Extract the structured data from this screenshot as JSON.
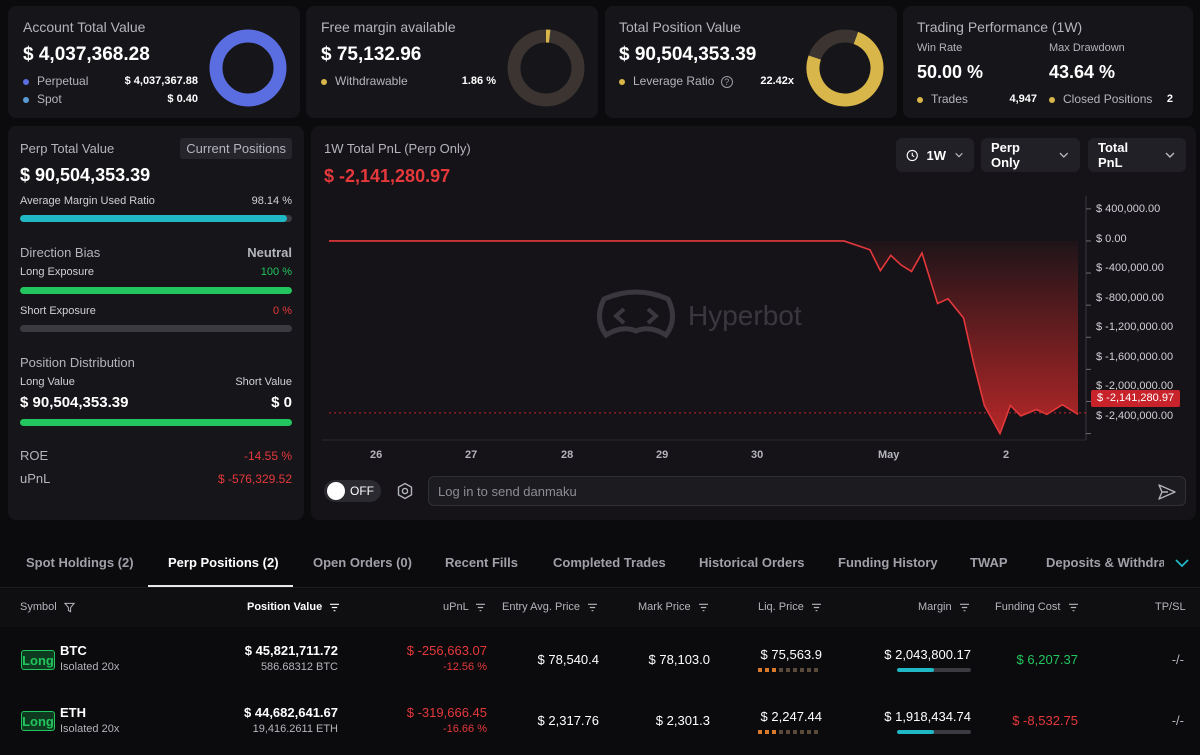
{
  "account": {
    "title": "Account Total Value",
    "value": "$ 4,037,368.28",
    "rows": [
      {
        "label": "Perpetual",
        "value": "$ 4,037,367.88"
      },
      {
        "label": "Spot",
        "value": "$ 0.40"
      }
    ],
    "donut_color": "#5b6ee1"
  },
  "margin": {
    "title": "Free margin available",
    "value": "$ 75,132.96",
    "row_label": "Withdrawable",
    "row_value": "1.86 %",
    "pct": 0.0186,
    "donut_color": "#d9b64a"
  },
  "position": {
    "title": "Total Position Value",
    "value": "$ 90,504,353.39",
    "row_label": "Leverage Ratio",
    "row_value": "22.42x",
    "donut_color": "#d9b64a"
  },
  "performance": {
    "title": "Trading Performance (1W)",
    "win_rate_label": "Win Rate",
    "win_rate": "50.00 %",
    "drawdown_label": "Max Drawdown",
    "drawdown": "43.64 %",
    "trades_label": "Trades",
    "trades": "4,947",
    "closed_label": "Closed Positions",
    "closed": "2"
  },
  "perp_panel": {
    "title": "Perp Total Value",
    "current_positions": "Current Positions",
    "value": "$ 90,504,353.39",
    "avg_margin_label": "Average Margin Used Ratio",
    "avg_margin": "98.14 %",
    "avg_margin_pct": 0.9814,
    "direction_label": "Direction Bias",
    "direction_value": "Neutral",
    "long_exposure_label": "Long Exposure",
    "long_exposure": "100 %",
    "long_exposure_pct": 1.0,
    "short_exposure_label": "Short Exposure",
    "short_exposure": "0 %",
    "short_exposure_pct": 0.0,
    "distribution_label": "Position Distribution",
    "long_value_label": "Long Value",
    "short_value_label": "Short Value",
    "long_value": "$ 90,504,353.39",
    "short_value": "$ 0",
    "roe_label": "ROE",
    "roe": "-14.55 %",
    "upnl_label": "uPnL",
    "upnl": "$ -576,329.52"
  },
  "pnl_chart": {
    "title": "1W Total PnL (Perp Only)",
    "value": "$ -2,141,280.97",
    "period": "1W",
    "scope": "Perp Only",
    "metric": "Total PnL",
    "watermark": "Hyperbot",
    "current_label": "$ -2,141,280.97",
    "danmaku_toggle": "OFF",
    "danmaku_placeholder": "Log in to send danmaku"
  },
  "chart_data": {
    "type": "area",
    "title": "1W Total PnL (Perp Only)",
    "y_ticks": [
      "$ 400,000.00",
      "$ 0.00",
      "$ -400,000.00",
      "$ -800,000.00",
      "$ -1,200,000.00",
      "$ -1,600,000.00",
      "$ -2,000,000.00",
      "$ -2,400,000.00"
    ],
    "y_tick_values": [
      400000,
      0,
      -400000,
      -800000,
      -1200000,
      -1600000,
      -2000000,
      -2400000
    ],
    "x_ticks": [
      "26",
      "27",
      "28",
      "29",
      "30",
      "May",
      "2"
    ],
    "x_tick_days": [
      0,
      1,
      2,
      3,
      4,
      5,
      6
    ],
    "ylim": [
      -2480000,
      560000
    ],
    "xlim": [
      -0.5,
      6.7
    ],
    "current_value": -2141280.97,
    "series": [
      {
        "x": [
          -0.5,
          0.5,
          1.5,
          2.5,
          3.5,
          4.2,
          4.45,
          4.7,
          4.8,
          4.9,
          5.0,
          5.1,
          5.2,
          5.35,
          5.45,
          5.6,
          5.7,
          5.8,
          5.95,
          6.05,
          6.15,
          6.3,
          6.4,
          6.55,
          6.7
        ],
        "y": [
          0,
          0,
          0,
          0,
          0,
          0,
          0,
          -110000,
          -370000,
          -180000,
          -300000,
          -380000,
          -150000,
          -780000,
          -720000,
          -960000,
          -1540000,
          -2050000,
          -2400000,
          -2050000,
          -2180000,
          -2100000,
          -2160000,
          -2040000,
          -2160000
        ]
      }
    ]
  },
  "tabs": [
    {
      "label": "Spot Holdings (2)",
      "active": false
    },
    {
      "label": "Perp Positions (2)",
      "active": true
    },
    {
      "label": "Open Orders (0)",
      "active": false
    },
    {
      "label": "Recent Fills",
      "active": false
    },
    {
      "label": "Completed Trades",
      "active": false
    },
    {
      "label": "Historical Orders",
      "active": false
    },
    {
      "label": "Funding History",
      "active": false
    },
    {
      "label": "TWAP",
      "active": false
    },
    {
      "label": "Deposits & Withdrav",
      "active": false
    }
  ],
  "table": {
    "headers": {
      "symbol": "Symbol",
      "position_value": "Position Value",
      "upnl": "uPnL",
      "entry": "Entry Avg. Price",
      "mark": "Mark Price",
      "liq": "Liq. Price",
      "margin": "Margin",
      "funding": "Funding Cost",
      "tpsl": "TP/SL"
    },
    "rows": [
      {
        "side": "Long",
        "symbol": "BTC",
        "mode": "Isolated 20x",
        "position_value": "$ 45,821,711.72",
        "position_size": "586.68312 BTC",
        "upnl": "$ -256,663.07",
        "upnl_pct": "-12.56 %",
        "entry": "$ 78,540.4",
        "mark": "$ 78,103.0",
        "liq": "$ 75,563.9",
        "margin": "$ 2,043,800.17",
        "margin_fill": 0.5,
        "funding": "$ 6,207.37",
        "funding_positive": true,
        "tpsl": "-/-"
      },
      {
        "side": "Long",
        "symbol": "ETH",
        "mode": "Isolated 20x",
        "position_value": "$ 44,682,641.67",
        "position_size": "19,416.2611 ETH",
        "upnl": "$ -319,666.45",
        "upnl_pct": "-16.66 %",
        "entry": "$ 2,317.76",
        "mark": "$ 2,301.3",
        "liq": "$ 2,247.44",
        "margin": "$ 1,918,434.74",
        "margin_fill": 0.5,
        "funding": "$ -8,532.75",
        "funding_positive": false,
        "tpsl": "-/-"
      }
    ]
  }
}
